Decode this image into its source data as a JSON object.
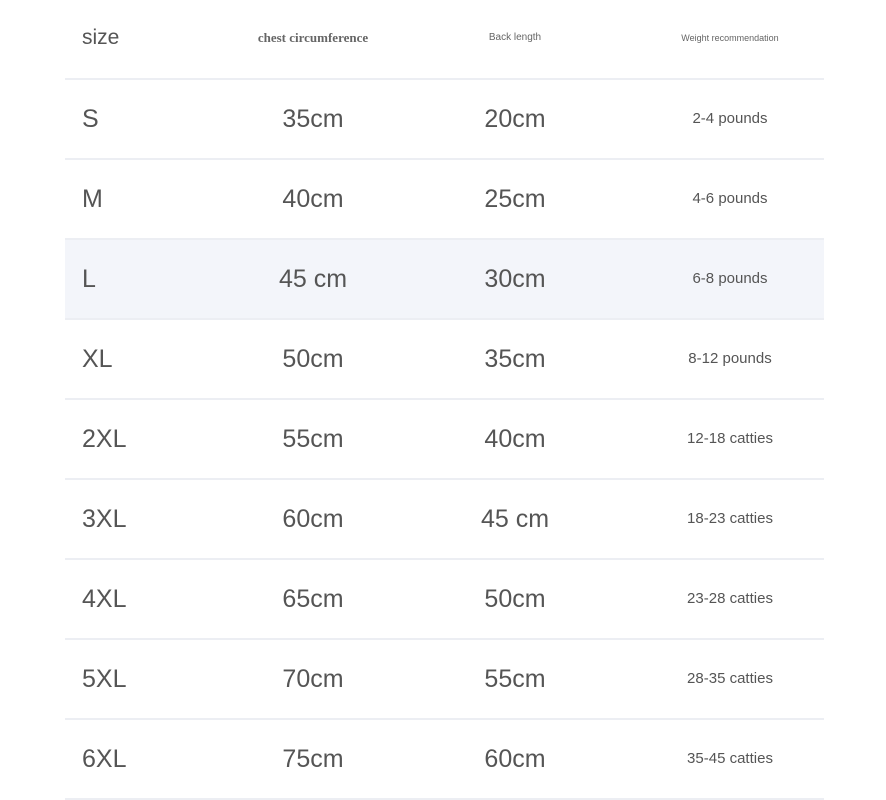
{
  "header": {
    "size": "size",
    "chest": "chest circumference",
    "back": "Back length",
    "weight": "Weight recommendation"
  },
  "rows": [
    {
      "size": "S",
      "chest": "35cm",
      "back": "20cm",
      "weight": "2-4 pounds"
    },
    {
      "size": "M",
      "chest": "40cm",
      "back": "25cm",
      "weight": "4-6 pounds"
    },
    {
      "size": "L",
      "chest": "45 cm",
      "back": "30cm",
      "weight": "6-8 pounds"
    },
    {
      "size": "XL",
      "chest": "50cm",
      "back": "35cm",
      "weight": "8-12 pounds"
    },
    {
      "size": "2XL",
      "chest": "55cm",
      "back": "40cm",
      "weight": "12-18 catties"
    },
    {
      "size": "3XL",
      "chest": "60cm",
      "back": "45 cm",
      "weight": "18-23 catties"
    },
    {
      "size": "4XL",
      "chest": "65cm",
      "back": "50cm",
      "weight": "23-28 catties"
    },
    {
      "size": "5XL",
      "chest": "70cm",
      "back": "55cm",
      "weight": "28-35 catties"
    },
    {
      "size": "6XL",
      "chest": "75cm",
      "back": "60cm",
      "weight": "35-45 catties"
    }
  ],
  "highlight_row": "L",
  "colors": {
    "text": "#555555",
    "divider": "#eceef3",
    "highlight": "#f3f5fa"
  }
}
